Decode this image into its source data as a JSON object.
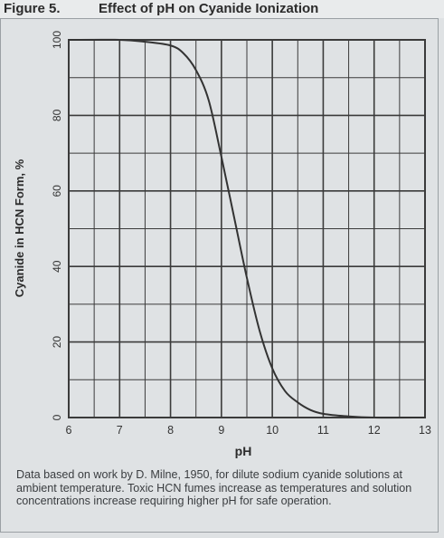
{
  "figure": {
    "label": "Figure 5.",
    "title": "Effect of pH on Cyanide Ionization"
  },
  "caption": "Data based on work by D. Milne, 1950, for dilute sodium cyanide solutions at ambient temperature. Toxic HCN fumes increase as temperatures and solution concentrations increase requiring higher pH for safe operation.",
  "colors": {
    "grid": "#3b3b3b",
    "curve": "#333333",
    "background": "#dfe2e4"
  },
  "chart_data": {
    "type": "line",
    "xlabel": "pH",
    "ylabel": "Cyanide in HCN Form, %",
    "xlim": [
      6,
      13
    ],
    "ylim": [
      0,
      100
    ],
    "x_ticks": [
      "6",
      "7",
      "8",
      "9",
      "10",
      "11",
      "12",
      "13"
    ],
    "y_ticks": [
      "0",
      "20",
      "40",
      "60",
      "80",
      "100"
    ],
    "grid": true,
    "x_minor_step": 0.5,
    "y_minor_step": 10,
    "series": [
      {
        "x": [
          6,
          7,
          7.5,
          8,
          8.25,
          8.5,
          8.75,
          9,
          9.25,
          9.5,
          9.75,
          10,
          10.25,
          10.5,
          10.75,
          11,
          11.5,
          12,
          13
        ],
        "y": [
          100,
          100,
          99.5,
          98.5,
          96.5,
          92,
          84,
          69,
          53,
          37,
          23,
          13,
          7,
          4,
          2,
          1,
          0.3,
          0,
          0
        ]
      }
    ]
  }
}
